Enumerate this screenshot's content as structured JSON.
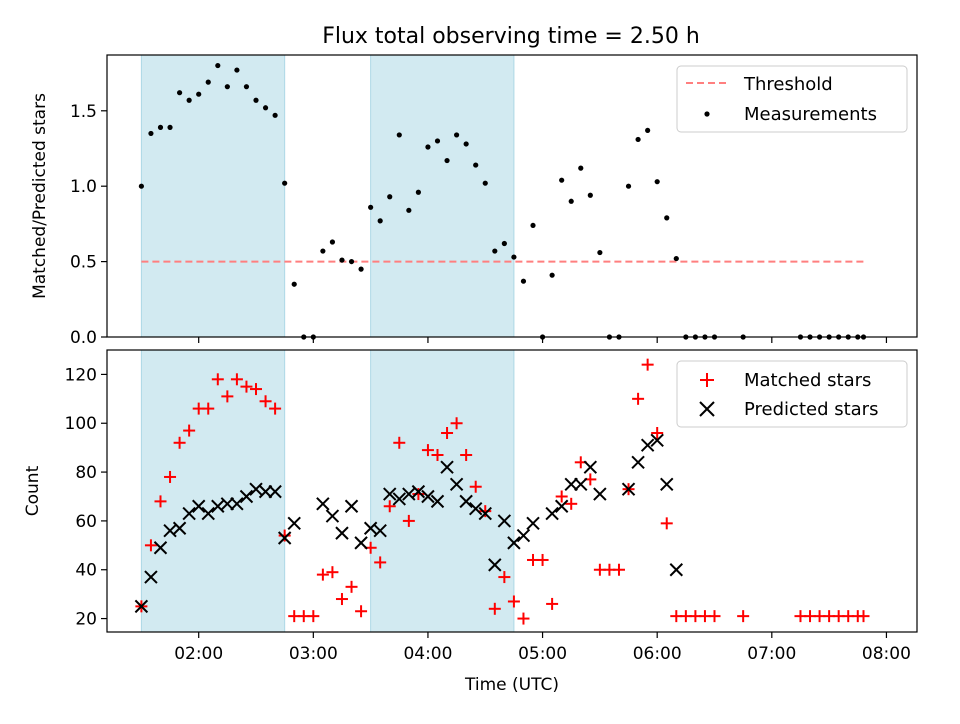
{
  "figure_title": "Flux total observing time = 2.50 h",
  "colors": {
    "shade": "#add8e6",
    "threshold": "#ff7f7f",
    "measurement": "#000000",
    "matched": "#ff0000",
    "predicted": "#000000"
  },
  "chart_data": [
    {
      "type": "scatter",
      "ylabel": "Matched/Predicted stars",
      "xlim": [
        "01:12",
        "08:16"
      ],
      "ylim": [
        0,
        1.87
      ],
      "yticks": [
        0.0,
        0.5,
        1.0,
        1.5
      ],
      "ytick_labels": [
        "0.0",
        "0.5",
        "1.0",
        "1.5"
      ],
      "shaded_intervals": [
        [
          "01:30",
          "02:45"
        ],
        [
          "03:30",
          "04:45"
        ]
      ],
      "legend": {
        "placement": "top-right",
        "entries": [
          "Threshold",
          "Measurements"
        ]
      },
      "threshold": {
        "name": "Threshold",
        "value": 0.5,
        "x": [
          "01:30",
          "07:48"
        ],
        "style": "dashed"
      },
      "series": [
        {
          "name": "Measurements",
          "marker": "dot",
          "x": [
            "01:30",
            "01:35",
            "01:40",
            "01:45",
            "01:50",
            "01:55",
            "02:00",
            "02:05",
            "02:10",
            "02:15",
            "02:20",
            "02:25",
            "02:30",
            "02:35",
            "02:40",
            "02:45",
            "02:50",
            "02:55",
            "03:00",
            "03:05",
            "03:10",
            "03:15",
            "03:20",
            "03:25",
            "03:30",
            "03:35",
            "03:40",
            "03:45",
            "03:50",
            "03:55",
            "04:00",
            "04:05",
            "04:10",
            "04:15",
            "04:20",
            "04:25",
            "04:30",
            "04:35",
            "04:40",
            "04:45",
            "04:50",
            "04:55",
            "05:00",
            "05:05",
            "05:10",
            "05:15",
            "05:20",
            "05:25",
            "05:30",
            "05:35",
            "05:40",
            "05:45",
            "05:50",
            "05:55",
            "06:00",
            "06:05",
            "06:10",
            "06:15",
            "06:20",
            "06:25",
            "06:30",
            "06:45",
            "07:15",
            "07:20",
            "07:25",
            "07:30",
            "07:35",
            "07:40",
            "07:45",
            "07:48"
          ],
          "y": [
            1.0,
            1.35,
            1.39,
            1.39,
            1.62,
            1.57,
            1.61,
            1.69,
            1.8,
            1.66,
            1.77,
            1.66,
            1.57,
            1.52,
            1.47,
            1.02,
            0.35,
            0.0,
            0.0,
            0.57,
            0.63,
            0.51,
            0.5,
            0.45,
            0.86,
            0.77,
            0.93,
            1.34,
            0.84,
            0.96,
            1.26,
            1.3,
            1.17,
            1.34,
            1.28,
            1.14,
            1.02,
            0.57,
            0.62,
            0.53,
            0.37,
            0.74,
            0.0,
            0.41,
            1.04,
            0.9,
            1.12,
            0.94,
            0.56,
            0.0,
            0.0,
            1.0,
            1.31,
            1.37,
            1.03,
            0.79,
            0.52,
            0.0,
            0.0,
            0.0,
            0.0,
            0.0,
            0.0,
            0.0,
            0.0,
            0.0,
            0.0,
            0.0,
            0.0,
            0.0
          ]
        }
      ]
    },
    {
      "type": "scatter",
      "xlabel": "Time (UTC)",
      "ylabel": "Count",
      "xlim": [
        "01:12",
        "08:16"
      ],
      "ylim": [
        14.5,
        130
      ],
      "yticks": [
        20,
        40,
        60,
        80,
        100,
        120
      ],
      "ytick_labels": [
        "20",
        "40",
        "60",
        "80",
        "100",
        "120"
      ],
      "xticks": [
        "02:00",
        "03:00",
        "04:00",
        "05:00",
        "06:00",
        "07:00",
        "08:00"
      ],
      "xtick_labels": [
        "02:00",
        "03:00",
        "04:00",
        "05:00",
        "06:00",
        "07:00",
        "08:00"
      ],
      "shaded_intervals": [
        [
          "01:30",
          "02:45"
        ],
        [
          "03:30",
          "04:45"
        ]
      ],
      "legend": {
        "placement": "top-right",
        "entries": [
          "Matched stars",
          "Predicted stars"
        ]
      },
      "series": [
        {
          "name": "Matched stars",
          "marker": "plus",
          "x": [
            "01:30",
            "01:35",
            "01:40",
            "01:45",
            "01:50",
            "01:55",
            "02:00",
            "02:05",
            "02:10",
            "02:15",
            "02:20",
            "02:25",
            "02:30",
            "02:35",
            "02:40",
            "02:45",
            "02:50",
            "02:55",
            "03:00",
            "03:05",
            "03:10",
            "03:15",
            "03:20",
            "03:25",
            "03:30",
            "03:35",
            "03:40",
            "03:45",
            "03:50",
            "03:55",
            "04:00",
            "04:05",
            "04:10",
            "04:15",
            "04:20",
            "04:25",
            "04:30",
            "04:35",
            "04:40",
            "04:45",
            "04:50",
            "04:55",
            "05:00",
            "05:05",
            "05:10",
            "05:15",
            "05:20",
            "05:25",
            "05:30",
            "05:35",
            "05:40",
            "05:45",
            "05:50",
            "05:55",
            "06:00",
            "06:05",
            "06:10",
            "06:15",
            "06:20",
            "06:25",
            "06:30",
            "06:45",
            "07:15",
            "07:20",
            "07:25",
            "07:30",
            "07:35",
            "07:40",
            "07:45",
            "07:48"
          ],
          "y": [
            25,
            50,
            68,
            78,
            92,
            97,
            106,
            106,
            118,
            111,
            118,
            115,
            114,
            109,
            106,
            54,
            21,
            21,
            21,
            38,
            39,
            28,
            33,
            23,
            49,
            43,
            66,
            92,
            60,
            71,
            89,
            87,
            96,
            100,
            87,
            74,
            64,
            24,
            37,
            27,
            20,
            44,
            44,
            26,
            70,
            67,
            84,
            77,
            40,
            40,
            40,
            73,
            110,
            124,
            96,
            59,
            21,
            21,
            21,
            21,
            21,
            21,
            21,
            21,
            21,
            21,
            21,
            21,
            21,
            21
          ]
        },
        {
          "name": "Predicted stars",
          "marker": "x",
          "x": [
            "01:30",
            "01:35",
            "01:40",
            "01:45",
            "01:50",
            "01:55",
            "02:00",
            "02:05",
            "02:10",
            "02:15",
            "02:20",
            "02:25",
            "02:30",
            "02:35",
            "02:40",
            "02:45",
            "02:50",
            "03:05",
            "03:10",
            "03:15",
            "03:20",
            "03:25",
            "03:30",
            "03:35",
            "03:40",
            "03:45",
            "03:50",
            "03:55",
            "04:00",
            "04:05",
            "04:10",
            "04:15",
            "04:20",
            "04:25",
            "04:30",
            "04:35",
            "04:40",
            "04:45",
            "04:50",
            "04:55",
            "05:05",
            "05:10",
            "05:15",
            "05:20",
            "05:25",
            "05:30",
            "05:45",
            "05:50",
            "05:55",
            "06:00",
            "06:05",
            "06:10"
          ],
          "y": [
            25,
            37,
            49,
            56,
            57,
            63,
            66,
            63,
            66,
            67,
            67,
            70,
            73,
            72,
            72,
            53,
            59,
            67,
            62,
            55,
            66,
            51,
            57,
            56,
            71,
            69,
            71,
            72,
            70,
            68,
            82,
            75,
            68,
            65,
            63,
            42,
            60,
            51,
            54,
            59,
            63,
            66,
            75,
            75,
            82,
            71,
            73,
            84,
            91,
            93,
            75,
            40
          ]
        }
      ]
    }
  ]
}
